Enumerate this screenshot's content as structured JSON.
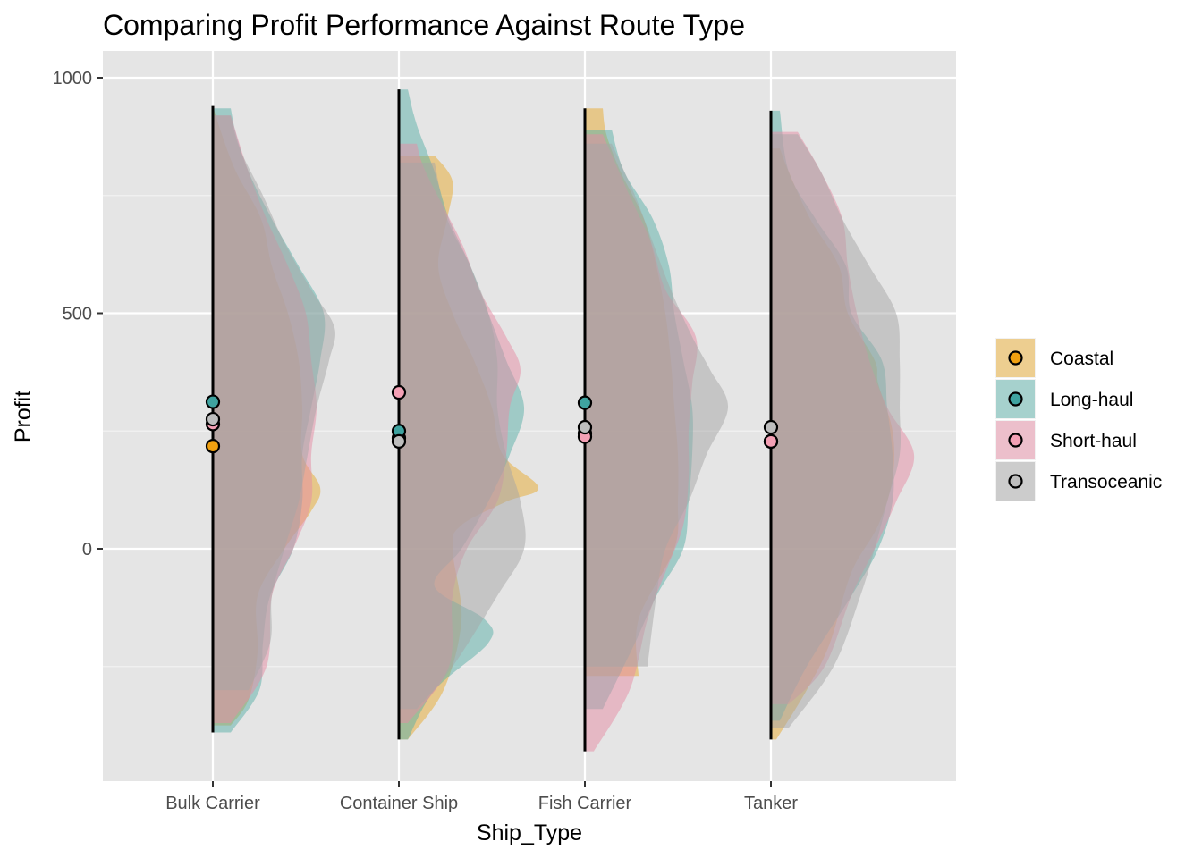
{
  "chart_data": {
    "type": "half-violin",
    "title": "Comparing Profit Performance Against Route Type",
    "xlabel": "Ship_Type",
    "ylabel": "Profit",
    "categories": [
      "Bulk Carrier",
      "Container Ship",
      "Fish Carrier",
      "Tanker"
    ],
    "ylim": [
      -490,
      1030
    ],
    "y_ticks": [
      0,
      500,
      1000
    ],
    "y_tick_labels": [
      "0",
      "500",
      "1000"
    ],
    "grid": true,
    "legend": {
      "position": "right",
      "entries": [
        {
          "name": "Coastal",
          "fill": "#E7A92E",
          "point": "#F0A010"
        },
        {
          "name": "Long-haul",
          "fill": "#5AAFA8",
          "point": "#3FA3A0"
        },
        {
          "name": "Short-haul",
          "fill": "#E58CA3",
          "point": "#F4A0B5"
        },
        {
          "name": "Transoceanic",
          "fill": "#A6A6A6",
          "point": "#BEBEBE"
        }
      ]
    },
    "series": [
      {
        "name": "Coastal",
        "color": "#E7A92E",
        "medians": [
          218,
          235,
          245,
          228
        ],
        "ranges": [
          [
            -375,
            940
          ],
          [
            -405,
            835
          ],
          [
            -270,
            935
          ],
          [
            -405,
            850
          ]
        ],
        "profiles": [
          [
            [
              -375,
              0.1
            ],
            [
              -320,
              0.2
            ],
            [
              -220,
              0.25
            ],
            [
              -100,
              0.25
            ],
            [
              0,
              0.4
            ],
            [
              80,
              0.55
            ],
            [
              130,
              0.6
            ],
            [
              200,
              0.5
            ],
            [
              300,
              0.5
            ],
            [
              400,
              0.48
            ],
            [
              500,
              0.42
            ],
            [
              600,
              0.33
            ],
            [
              700,
              0.27
            ],
            [
              800,
              0.13
            ],
            [
              880,
              0.05
            ],
            [
              940,
              0.0
            ]
          ],
          [
            [
              -405,
              0.05
            ],
            [
              -300,
              0.25
            ],
            [
              -150,
              0.35
            ],
            [
              0,
              0.3
            ],
            [
              50,
              0.35
            ],
            [
              100,
              0.6
            ],
            [
              130,
              0.78
            ],
            [
              200,
              0.58
            ],
            [
              300,
              0.52
            ],
            [
              400,
              0.42
            ],
            [
              500,
              0.3
            ],
            [
              600,
              0.22
            ],
            [
              700,
              0.27
            ],
            [
              780,
              0.3
            ],
            [
              835,
              0.2
            ]
          ],
          [
            [
              -270,
              0.3
            ],
            [
              -150,
              0.3
            ],
            [
              0,
              0.5
            ],
            [
              100,
              0.52
            ],
            [
              200,
              0.52
            ],
            [
              300,
              0.5
            ],
            [
              400,
              0.48
            ],
            [
              500,
              0.45
            ],
            [
              600,
              0.4
            ],
            [
              700,
              0.33
            ],
            [
              800,
              0.2
            ],
            [
              880,
              0.12
            ],
            [
              935,
              0.1
            ]
          ],
          [
            [
              -405,
              0.03
            ],
            [
              -300,
              0.2
            ],
            [
              -200,
              0.33
            ],
            [
              -50,
              0.45
            ],
            [
              50,
              0.6
            ],
            [
              150,
              0.68
            ],
            [
              250,
              0.68
            ],
            [
              350,
              0.6
            ],
            [
              400,
              0.58
            ],
            [
              500,
              0.43
            ],
            [
              600,
              0.38
            ],
            [
              700,
              0.22
            ],
            [
              800,
              0.1
            ],
            [
              850,
              0.05
            ]
          ]
        ]
      },
      {
        "name": "Long-haul",
        "color": "#5AAFA8",
        "medians": [
          312,
          250,
          310,
          228
        ],
        "ranges": [
          [
            -390,
            935
          ],
          [
            -405,
            975
          ],
          [
            -340,
            890
          ],
          [
            -365,
            930
          ]
        ],
        "profiles": [
          [
            [
              -390,
              0.1
            ],
            [
              -300,
              0.26
            ],
            [
              -200,
              0.28
            ],
            [
              -100,
              0.32
            ],
            [
              0,
              0.45
            ],
            [
              100,
              0.5
            ],
            [
              200,
              0.5
            ],
            [
              300,
              0.55
            ],
            [
              400,
              0.6
            ],
            [
              500,
              0.62
            ],
            [
              600,
              0.48
            ],
            [
              700,
              0.33
            ],
            [
              800,
              0.2
            ],
            [
              880,
              0.13
            ],
            [
              935,
              0.1
            ]
          ],
          [
            [
              -405,
              0.05
            ],
            [
              -300,
              0.2
            ],
            [
              -200,
              0.5
            ],
            [
              -150,
              0.48
            ],
            [
              -80,
              0.2
            ],
            [
              0,
              0.35
            ],
            [
              100,
              0.5
            ],
            [
              200,
              0.62
            ],
            [
              300,
              0.7
            ],
            [
              400,
              0.6
            ],
            [
              500,
              0.5
            ],
            [
              600,
              0.4
            ],
            [
              700,
              0.28
            ],
            [
              800,
              0.2
            ],
            [
              900,
              0.1
            ],
            [
              975,
              0.05
            ]
          ],
          [
            [
              -340,
              0.1
            ],
            [
              -200,
              0.28
            ],
            [
              -100,
              0.4
            ],
            [
              0,
              0.55
            ],
            [
              100,
              0.58
            ],
            [
              200,
              0.6
            ],
            [
              300,
              0.6
            ],
            [
              400,
              0.55
            ],
            [
              500,
              0.5
            ],
            [
              600,
              0.47
            ],
            [
              700,
              0.38
            ],
            [
              800,
              0.22
            ],
            [
              890,
              0.15
            ]
          ],
          [
            [
              -365,
              0.05
            ],
            [
              -250,
              0.2
            ],
            [
              -100,
              0.45
            ],
            [
              0,
              0.6
            ],
            [
              100,
              0.68
            ],
            [
              200,
              0.68
            ],
            [
              300,
              0.65
            ],
            [
              400,
              0.62
            ],
            [
              500,
              0.45
            ],
            [
              600,
              0.42
            ],
            [
              700,
              0.25
            ],
            [
              800,
              0.1
            ],
            [
              930,
              0.05
            ]
          ]
        ]
      },
      {
        "name": "Short-haul",
        "color": "#E58CA3",
        "medians": [
          265,
          332,
          238,
          228
        ],
        "ranges": [
          [
            -370,
            920
          ],
          [
            -370,
            860
          ],
          [
            -430,
            880
          ],
          [
            -330,
            885
          ]
        ],
        "profiles": [
          [
            [
              -370,
              0.1
            ],
            [
              -250,
              0.3
            ],
            [
              -100,
              0.33
            ],
            [
              0,
              0.45
            ],
            [
              100,
              0.55
            ],
            [
              200,
              0.55
            ],
            [
              300,
              0.58
            ],
            [
              400,
              0.55
            ],
            [
              500,
              0.52
            ],
            [
              600,
              0.42
            ],
            [
              700,
              0.3
            ],
            [
              800,
              0.2
            ],
            [
              920,
              0.1
            ]
          ],
          [
            [
              -370,
              0.05
            ],
            [
              -250,
              0.28
            ],
            [
              -100,
              0.3
            ],
            [
              0,
              0.38
            ],
            [
              100,
              0.55
            ],
            [
              200,
              0.6
            ],
            [
              300,
              0.62
            ],
            [
              380,
              0.68
            ],
            [
              450,
              0.6
            ],
            [
              550,
              0.45
            ],
            [
              650,
              0.35
            ],
            [
              800,
              0.15
            ],
            [
              860,
              0.1
            ]
          ],
          [
            [
              -430,
              0.05
            ],
            [
              -300,
              0.25
            ],
            [
              -150,
              0.35
            ],
            [
              -50,
              0.45
            ],
            [
              50,
              0.55
            ],
            [
              150,
              0.58
            ],
            [
              250,
              0.58
            ],
            [
              350,
              0.6
            ],
            [
              450,
              0.62
            ],
            [
              550,
              0.45
            ],
            [
              650,
              0.37
            ],
            [
              750,
              0.25
            ],
            [
              880,
              0.1
            ]
          ],
          [
            [
              -330,
              0.1
            ],
            [
              -250,
              0.3
            ],
            [
              -100,
              0.45
            ],
            [
              0,
              0.58
            ],
            [
              100,
              0.7
            ],
            [
              200,
              0.8
            ],
            [
              300,
              0.65
            ],
            [
              400,
              0.55
            ],
            [
              500,
              0.48
            ],
            [
              600,
              0.43
            ],
            [
              700,
              0.4
            ],
            [
              800,
              0.28
            ],
            [
              885,
              0.15
            ]
          ]
        ]
      },
      {
        "name": "Transoceanic",
        "color": "#A6A6A6",
        "medians": [
          275,
          228,
          258,
          258
        ],
        "ranges": [
          [
            -300,
            920
          ],
          [
            -340,
            820
          ],
          [
            -250,
            860
          ],
          [
            -380,
            880
          ]
        ],
        "profiles": [
          [
            [
              -300,
              0.2
            ],
            [
              -200,
              0.32
            ],
            [
              -100,
              0.33
            ],
            [
              0,
              0.4
            ],
            [
              100,
              0.48
            ],
            [
              200,
              0.53
            ],
            [
              300,
              0.58
            ],
            [
              400,
              0.65
            ],
            [
              470,
              0.68
            ],
            [
              550,
              0.55
            ],
            [
              650,
              0.4
            ],
            [
              750,
              0.28
            ],
            [
              850,
              0.15
            ],
            [
              920,
              0.1
            ]
          ],
          [
            [
              -340,
              0.1
            ],
            [
              -250,
              0.3
            ],
            [
              -100,
              0.55
            ],
            [
              0,
              0.7
            ],
            [
              100,
              0.68
            ],
            [
              200,
              0.6
            ],
            [
              300,
              0.55
            ],
            [
              400,
              0.55
            ],
            [
              500,
              0.5
            ],
            [
              600,
              0.4
            ],
            [
              700,
              0.27
            ],
            [
              820,
              0.2
            ]
          ],
          [
            [
              -250,
              0.35
            ],
            [
              -100,
              0.4
            ],
            [
              0,
              0.45
            ],
            [
              100,
              0.58
            ],
            [
              200,
              0.68
            ],
            [
              300,
              0.8
            ],
            [
              380,
              0.7
            ],
            [
              450,
              0.6
            ],
            [
              550,
              0.48
            ],
            [
              650,
              0.38
            ],
            [
              750,
              0.28
            ],
            [
              860,
              0.15
            ]
          ],
          [
            [
              -380,
              0.1
            ],
            [
              -250,
              0.35
            ],
            [
              -100,
              0.5
            ],
            [
              0,
              0.58
            ],
            [
              100,
              0.65
            ],
            [
              200,
              0.72
            ],
            [
              300,
              0.72
            ],
            [
              400,
              0.72
            ],
            [
              500,
              0.7
            ],
            [
              600,
              0.55
            ],
            [
              700,
              0.4
            ],
            [
              800,
              0.28
            ],
            [
              880,
              0.15
            ]
          ]
        ]
      }
    ]
  }
}
